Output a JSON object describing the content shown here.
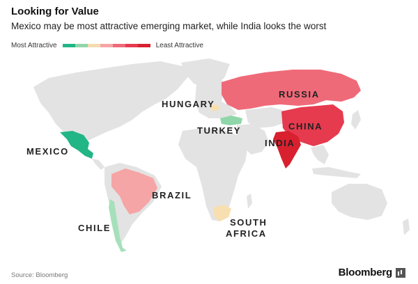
{
  "title": "Looking for Value",
  "subtitle": "Mexico may be most attractive emerging market, while India looks the worst",
  "legend": {
    "left_label": "Most Attractive",
    "right_label": "Least Attractive",
    "colors": [
      "#22b585",
      "#8fd6a9",
      "#f4dcae",
      "#f5a5a5",
      "#ef6a78",
      "#e63a4e",
      "#d8202f"
    ]
  },
  "colors": {
    "land": "#e3e3e3",
    "mexico": "#22b585",
    "turkey": "#8fd6a9",
    "chile": "#a6e0bb",
    "south_africa": "#f7dfb0",
    "hungary": "#f7dfb0",
    "brazil": "#f5a5a5",
    "russia": "#ef6a78",
    "china": "#e63a4e",
    "india": "#d8202f"
  },
  "countries": {
    "russia": "RUSSIA",
    "hungary": "HUNGARY",
    "turkey": "TURKEY",
    "china": "CHINA",
    "india": "INDIA",
    "mexico": "MEXICO",
    "brazil": "BRAZIL",
    "south_africa_1": "SOUTH",
    "south_africa_2": "AFRICA",
    "chile": "CHILE"
  },
  "source": "Source: Bloomberg",
  "brand": "Bloomberg"
}
